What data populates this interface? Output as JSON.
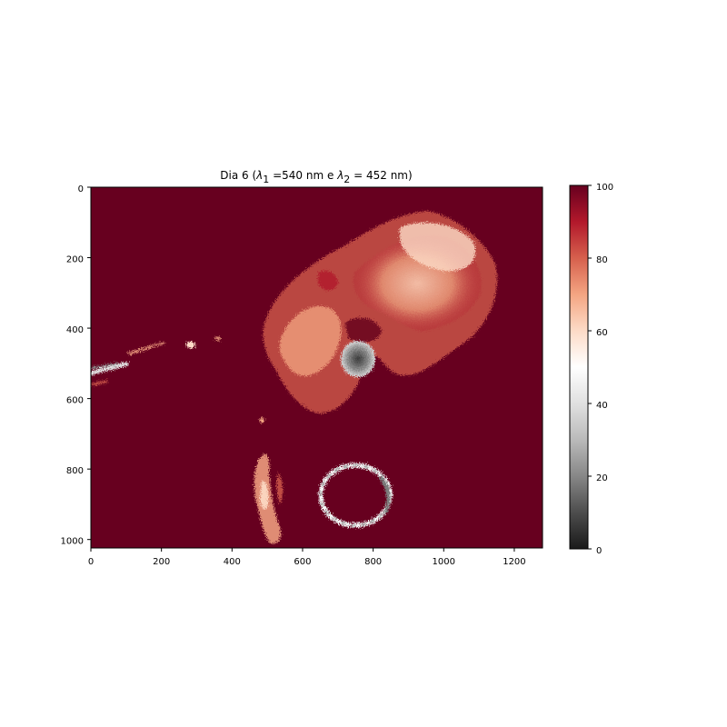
{
  "chart_data": {
    "type": "heatmap",
    "title": {
      "prefix": "Dia 6 (",
      "lambda1_symbol": "λ",
      "lambda1_sub": "1",
      "lambda1_value": " =540 nm e ",
      "lambda2_symbol": "λ",
      "lambda2_sub": "2",
      "lambda2_value": " = 452 nm)"
    },
    "xlabel": "",
    "ylabel": "",
    "xlim": [
      0,
      1280
    ],
    "ylim": [
      1024,
      0
    ],
    "x_ticks": [
      "0",
      "200",
      "400",
      "600",
      "800",
      "1000",
      "1200"
    ],
    "x_tick_values": [
      0,
      200,
      400,
      600,
      800,
      1000,
      1200
    ],
    "y_ticks": [
      "0",
      "200",
      "400",
      "600",
      "800",
      "1000"
    ],
    "y_tick_values": [
      0,
      200,
      400,
      600,
      800,
      1000
    ],
    "colorbar": {
      "colormap": "RdGy_r",
      "range": [
        0,
        100
      ],
      "ticks": [
        "0",
        "20",
        "40",
        "60",
        "80",
        "100"
      ],
      "tick_values": [
        0,
        20,
        40,
        60,
        80,
        100
      ]
    },
    "background_value": 100,
    "regions": [
      {
        "name": "large-diffuse-region",
        "center": [
          850,
          280
        ],
        "approx_value": 78
      },
      {
        "name": "dark-spot",
        "center": [
          755,
          490
        ],
        "approx_value": 30
      },
      {
        "name": "ring",
        "center": [
          760,
          880
        ],
        "approx_value": 55
      },
      {
        "name": "vertical-streak",
        "center": [
          505,
          880
        ],
        "approx_value": 72
      },
      {
        "name": "left-streak",
        "center": [
          60,
          520
        ],
        "approx_value": 50
      }
    ],
    "grid": false,
    "legend": "none"
  },
  "colors": {
    "background": "#67001f",
    "colormap_stops": [
      "#1a1a1a",
      "#4d4d4d",
      "#878787",
      "#bababa",
      "#e0e0e0",
      "#ffffff",
      "#fddbc7",
      "#f4a582",
      "#d6604d",
      "#b2182b",
      "#67001f"
    ]
  }
}
